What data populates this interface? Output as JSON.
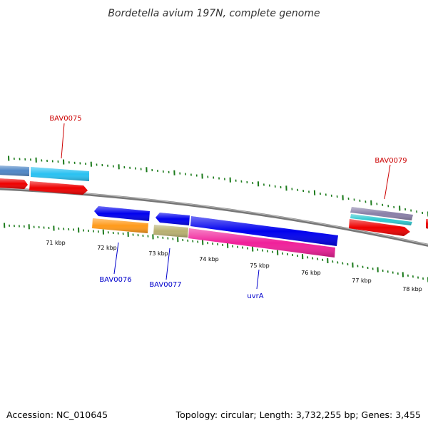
{
  "title": "Bordetella avium 197N, complete genome",
  "footer": {
    "accession": "Accession: NC_010645",
    "summary": "Topology: circular; Length: 3,732,255 bp; Genes: 3,455"
  },
  "colors": {
    "tick_green": "#1a7a1a",
    "backbone": "#888888",
    "label_red": "#cc0000",
    "label_blue": "#0000cc"
  },
  "scale_labels": [
    "71 kbp",
    "72 kbp",
    "73 kbp",
    "74 kbp",
    "75 kbp",
    "76 kbp",
    "77 kbp",
    "78 kbp"
  ],
  "gene_labels": [
    {
      "text": "BAV0075",
      "color": "#cc0000"
    },
    {
      "text": "BAV0076",
      "color": "#0000cc"
    },
    {
      "text": "BAV0077",
      "color": "#0000cc"
    },
    {
      "text": "uvrA",
      "color": "#0000cc"
    },
    {
      "text": "BAV0079",
      "color": "#cc0000"
    }
  ],
  "features": [
    {
      "track": "outer_top",
      "color": "#4f86c6",
      "dir": "left"
    },
    {
      "track": "outer_top",
      "color": "#29c1f2",
      "dir": "right"
    },
    {
      "track": "outer_mid",
      "color": "#ee0000",
      "dir": "right"
    },
    {
      "track": "outer_mid",
      "color": "#ee0000",
      "dir": "right"
    },
    {
      "track": "inner_top",
      "color": "#0000ee",
      "dir": "left"
    },
    {
      "track": "inner_mid",
      "color": "#ff9a1a",
      "dir": "none"
    },
    {
      "track": "inner_top",
      "color": "#0000ee",
      "dir": "left"
    },
    {
      "track": "inner_mid",
      "color": "#b8b070",
      "dir": "none"
    },
    {
      "track": "inner_top",
      "color": "#0000ee",
      "dir": "none"
    },
    {
      "track": "inner_mid",
      "color": "#f0209a",
      "dir": "none"
    },
    {
      "track": "outer_top",
      "color": "#8a80a8",
      "dir": "none"
    },
    {
      "track": "outer_top",
      "color": "#30c8d0",
      "dir": "none"
    },
    {
      "track": "outer_mid",
      "color": "#ee0000",
      "dir": "right"
    },
    {
      "track": "outer_mid",
      "color": "#ee0000",
      "dir": "none"
    }
  ]
}
